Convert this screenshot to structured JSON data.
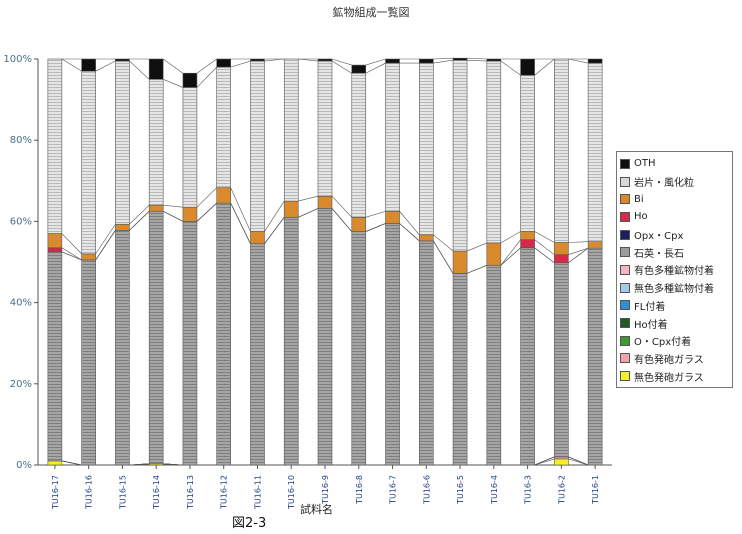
{
  "chart_data": {
    "type": "bar",
    "stacked": true,
    "title": "鉱物組成一覧図",
    "xlabel": "試料名",
    "figure_label": "図2-3",
    "ylim": [
      0,
      100
    ],
    "yticks": [
      "0%",
      "20%",
      "40%",
      "60%",
      "80%",
      "100%"
    ],
    "ytick_values": [
      0,
      20,
      40,
      60,
      80,
      100
    ],
    "grid": false,
    "legend_position": "right",
    "categories": [
      "TU16-17",
      "TU16-16",
      "TU16-15",
      "TU16-14",
      "TU16-13",
      "TU16-12",
      "TU16-11",
      "TU16-10",
      "TU16-9",
      "TU16-8",
      "TU16-7",
      "TU16-6",
      "TU16-5",
      "TU16-4",
      "TU16-3",
      "TU16-2",
      "TU16-1"
    ],
    "series": [
      {
        "name": "無色発砲ガラス",
        "color": "#f5ef2a",
        "values": [
          1,
          0,
          0,
          0.3,
          0,
          0,
          0,
          0,
          0,
          0,
          0,
          0,
          0,
          0,
          0,
          1.5,
          0
        ]
      },
      {
        "name": "有色発砲ガラス",
        "color": "#f2a2a8",
        "values": [
          0,
          0,
          0,
          0,
          0,
          0,
          0,
          0,
          0,
          0,
          0,
          0,
          0,
          0,
          0,
          0.5,
          0
        ]
      },
      {
        "name": "O・Cpx付着",
        "color": "#3a9a32",
        "values": [
          0,
          0,
          0,
          0,
          0,
          0,
          0,
          0,
          0,
          0,
          0,
          0,
          0,
          0,
          0,
          0,
          0
        ]
      },
      {
        "name": "Ho付着",
        "color": "#1e5a22",
        "values": [
          0,
          0,
          0,
          0,
          0,
          0,
          0,
          0,
          0,
          0,
          0,
          0,
          0,
          0,
          0,
          0,
          0
        ]
      },
      {
        "name": "FL付着",
        "color": "#2f8fd0",
        "values": [
          0,
          0,
          0,
          0,
          0,
          0,
          0,
          0,
          0,
          0,
          0,
          0,
          0,
          0,
          0,
          0,
          0
        ]
      },
      {
        "name": "無色多種鉱物付着",
        "color": "#a8c8ea",
        "values": [
          0,
          0,
          0,
          0,
          0,
          0,
          0,
          0,
          0,
          0,
          0,
          0,
          0,
          0,
          0,
          0,
          0
        ]
      },
      {
        "name": "有色多種鉱物付着",
        "color": "#f3b5c2",
        "values": [
          0,
          0,
          0,
          0,
          0,
          0,
          0,
          0,
          0,
          0,
          0,
          0,
          0,
          0,
          0,
          0,
          0
        ]
      },
      {
        "name": "石英・長石",
        "color": "#9b9b9b",
        "values": [
          51.5,
          50.5,
          57.8,
          62.2,
          60,
          64.5,
          54.5,
          61,
          63.2,
          57.5,
          59.5,
          55.2,
          47.2,
          49.2,
          53.5,
          47.8,
          53.4
        ]
      },
      {
        "name": "Opx・Cpx",
        "color": "#1c1c5e",
        "values": [
          0,
          0,
          0,
          0,
          0,
          0,
          0,
          0,
          0,
          0,
          0,
          0,
          0,
          0,
          0,
          0,
          0
        ]
      },
      {
        "name": "Ho",
        "color": "#d42a48",
        "values": [
          1,
          0,
          0,
          0,
          0,
          0,
          0,
          0,
          0,
          0,
          0,
          0,
          0,
          0,
          2,
          2,
          0
        ]
      },
      {
        "name": "Bi",
        "color": "#d98a2c",
        "values": [
          3.5,
          1.5,
          1.5,
          1.5,
          3.5,
          3.8,
          3,
          4,
          3,
          3.5,
          3,
          1.5,
          5.5,
          5.5,
          2,
          3,
          1.6
        ]
      },
      {
        "name": "岩片・風化粒",
        "color": "#d8d8d8",
        "values": [
          43,
          45,
          40.2,
          31,
          29.5,
          29.7,
          42,
          35,
          33.3,
          35.5,
          36.5,
          42.3,
          47,
          44.8,
          38.5,
          45.2,
          44
        ]
      },
      {
        "name": "OTH",
        "color": "#0f0f0f",
        "values": [
          0,
          3,
          0.5,
          5,
          3.5,
          2,
          0.5,
          0,
          0.5,
          2,
          1,
          1,
          0.5,
          0.5,
          4,
          0,
          1
        ]
      }
    ]
  }
}
